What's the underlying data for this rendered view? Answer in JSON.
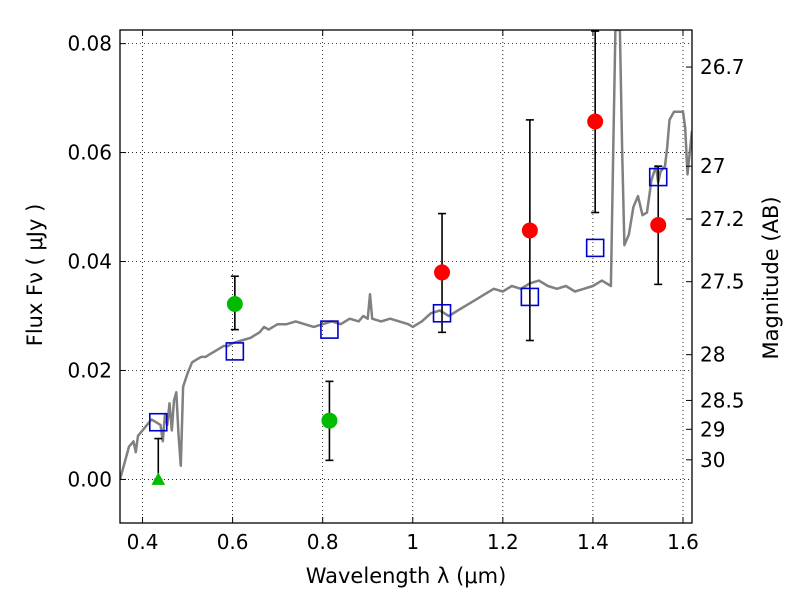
{
  "chart_data": {
    "type": "scatter",
    "xlabel": "Wavelength  λ (μm)",
    "ylabel": "Flux  Fν  ( μJy )",
    "y2label": "Magnitude (AB)",
    "xlim": [
      0.35,
      1.62
    ],
    "ylim": [
      -0.008,
      0.0825
    ],
    "grid": true,
    "x_ticks": [
      {
        "value": 0.4,
        "label": "0.4"
      },
      {
        "value": 0.6,
        "label": "0.6"
      },
      {
        "value": 0.8,
        "label": "0.8"
      },
      {
        "value": 1.0,
        "label": "1"
      },
      {
        "value": 1.2,
        "label": "1.2"
      },
      {
        "value": 1.4,
        "label": "1.4"
      },
      {
        "value": 1.6,
        "label": "1.6"
      }
    ],
    "y_ticks": [
      {
        "value": 0.0,
        "label": "0.00"
      },
      {
        "value": 0.02,
        "label": "0.02"
      },
      {
        "value": 0.04,
        "label": "0.04"
      },
      {
        "value": 0.06,
        "label": "0.06"
      },
      {
        "value": 0.08,
        "label": "0.08"
      }
    ],
    "mag_ticks": [
      {
        "flux": 0.0757,
        "label": "26.7"
      },
      {
        "flux": 0.0575,
        "label": "27"
      },
      {
        "flux": 0.0478,
        "label": "27.2"
      },
      {
        "flux": 0.0363,
        "label": "27.5"
      },
      {
        "flux": 0.0229,
        "label": "28"
      },
      {
        "flux": 0.0145,
        "label": "28.5"
      },
      {
        "flux": 0.0092,
        "label": "29"
      },
      {
        "flux": 0.0036,
        "label": "30"
      }
    ],
    "colors": {
      "model": "#808080",
      "observed_red": "#ff0000",
      "observed_green": "#00bb00",
      "synthetic": "#0000cc",
      "errorbar": "#000000"
    },
    "model_spectrum": [
      [
        0.35,
        0.0
      ],
      [
        0.36,
        0.003
      ],
      [
        0.37,
        0.006
      ],
      [
        0.38,
        0.007
      ],
      [
        0.385,
        0.005
      ],
      [
        0.39,
        0.008
      ],
      [
        0.4,
        0.009
      ],
      [
        0.41,
        0.01
      ],
      [
        0.42,
        0.011
      ],
      [
        0.43,
        0.0105
      ],
      [
        0.44,
        0.01
      ],
      [
        0.445,
        0.007
      ],
      [
        0.45,
        0.012
      ],
      [
        0.455,
        0.01
      ],
      [
        0.46,
        0.014
      ],
      [
        0.465,
        0.009
      ],
      [
        0.47,
        0.0145
      ],
      [
        0.475,
        0.016
      ],
      [
        0.48,
        0.008
      ],
      [
        0.485,
        0.0025
      ],
      [
        0.49,
        0.017
      ],
      [
        0.5,
        0.0195
      ],
      [
        0.51,
        0.0215
      ],
      [
        0.52,
        0.022
      ],
      [
        0.53,
        0.0225
      ],
      [
        0.54,
        0.0225
      ],
      [
        0.55,
        0.023
      ],
      [
        0.56,
        0.0235
      ],
      [
        0.57,
        0.024
      ],
      [
        0.58,
        0.0245
      ],
      [
        0.59,
        0.0245
      ],
      [
        0.6,
        0.025
      ],
      [
        0.62,
        0.0255
      ],
      [
        0.64,
        0.026
      ],
      [
        0.66,
        0.027
      ],
      [
        0.67,
        0.028
      ],
      [
        0.68,
        0.0275
      ],
      [
        0.7,
        0.0285
      ],
      [
        0.72,
        0.0285
      ],
      [
        0.74,
        0.029
      ],
      [
        0.76,
        0.0285
      ],
      [
        0.78,
        0.028
      ],
      [
        0.8,
        0.0285
      ],
      [
        0.82,
        0.029
      ],
      [
        0.84,
        0.0285
      ],
      [
        0.86,
        0.0295
      ],
      [
        0.88,
        0.029
      ],
      [
        0.89,
        0.03
      ],
      [
        0.9,
        0.0295
      ],
      [
        0.905,
        0.034
      ],
      [
        0.91,
        0.0295
      ],
      [
        0.93,
        0.029
      ],
      [
        0.95,
        0.0295
      ],
      [
        0.97,
        0.029
      ],
      [
        0.99,
        0.0285
      ],
      [
        1.0,
        0.028
      ],
      [
        1.02,
        0.029
      ],
      [
        1.04,
        0.0305
      ],
      [
        1.06,
        0.031
      ],
      [
        1.08,
        0.03
      ],
      [
        1.1,
        0.031
      ],
      [
        1.12,
        0.032
      ],
      [
        1.14,
        0.033
      ],
      [
        1.16,
        0.034
      ],
      [
        1.18,
        0.035
      ],
      [
        1.2,
        0.0345
      ],
      [
        1.22,
        0.0355
      ],
      [
        1.24,
        0.035
      ],
      [
        1.26,
        0.036
      ],
      [
        1.28,
        0.0365
      ],
      [
        1.3,
        0.0355
      ],
      [
        1.32,
        0.035
      ],
      [
        1.34,
        0.0355
      ],
      [
        1.36,
        0.0345
      ],
      [
        1.38,
        0.035
      ],
      [
        1.4,
        0.0355
      ],
      [
        1.42,
        0.0365
      ],
      [
        1.44,
        0.0355
      ],
      [
        1.445,
        0.06
      ],
      [
        1.45,
        0.0825
      ],
      [
        1.46,
        0.0825
      ],
      [
        1.465,
        0.06
      ],
      [
        1.47,
        0.043
      ],
      [
        1.48,
        0.045
      ],
      [
        1.49,
        0.05
      ],
      [
        1.5,
        0.052
      ],
      [
        1.51,
        0.0485
      ],
      [
        1.52,
        0.049
      ],
      [
        1.53,
        0.055
      ],
      [
        1.54,
        0.0575
      ],
      [
        1.545,
        0.0545
      ],
      [
        1.55,
        0.0565
      ],
      [
        1.56,
        0.0575
      ],
      [
        1.565,
        0.061
      ],
      [
        1.57,
        0.066
      ],
      [
        1.58,
        0.0675
      ],
      [
        1.59,
        0.0675
      ],
      [
        1.6,
        0.0675
      ],
      [
        1.605,
        0.0645
      ],
      [
        1.61,
        0.056
      ],
      [
        1.62,
        0.064
      ]
    ],
    "observed": [
      {
        "x": 0.435,
        "y": 0.0,
        "err": [
          0.0,
          0.0075
        ],
        "color": "green",
        "marker": "triangle"
      },
      {
        "x": 0.605,
        "y": 0.0322,
        "err": [
          0.0275,
          0.0373
        ],
        "color": "green",
        "marker": "circle"
      },
      {
        "x": 0.815,
        "y": 0.0108,
        "err": [
          0.0035,
          0.018
        ],
        "color": "green",
        "marker": "circle"
      },
      {
        "x": 1.065,
        "y": 0.038,
        "err": [
          0.027,
          0.0488
        ],
        "color": "red",
        "marker": "circle"
      },
      {
        "x": 1.26,
        "y": 0.0457,
        "err": [
          0.0255,
          0.066
        ],
        "color": "red",
        "marker": "circle"
      },
      {
        "x": 1.405,
        "y": 0.0657,
        "err": [
          0.049,
          0.0823
        ],
        "color": "red",
        "marker": "circle"
      },
      {
        "x": 1.545,
        "y": 0.0467,
        "err": [
          0.0358,
          0.0575
        ],
        "color": "red",
        "marker": "circle"
      }
    ],
    "synthetic": [
      {
        "x": 0.435,
        "y": 0.0105
      },
      {
        "x": 0.605,
        "y": 0.0235
      },
      {
        "x": 0.815,
        "y": 0.0275
      },
      {
        "x": 1.065,
        "y": 0.0305
      },
      {
        "x": 1.26,
        "y": 0.0335
      },
      {
        "x": 1.405,
        "y": 0.0425
      },
      {
        "x": 1.545,
        "y": 0.0555
      }
    ]
  }
}
